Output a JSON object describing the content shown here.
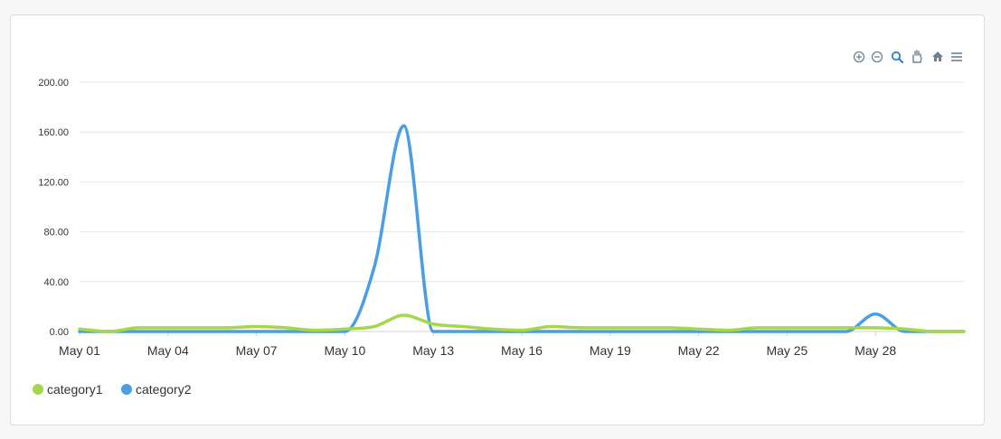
{
  "toolbar": {
    "icons": [
      "zoom-in-icon",
      "zoom-out-icon",
      "selection-zoom-icon",
      "pan-hand-icon",
      "reset-home-icon",
      "menu-icon"
    ],
    "color": "#6e8192"
  },
  "chart_data": {
    "type": "line",
    "title": "",
    "xlabel": "",
    "ylabel": "",
    "ylim": [
      0,
      200
    ],
    "yticks": [
      "0.00",
      "40.00",
      "80.00",
      "120.00",
      "160.00",
      "200.00"
    ],
    "xtick_labels": [
      "May 01",
      "May 04",
      "May 07",
      "May 10",
      "May 13",
      "May 16",
      "May 19",
      "May 22",
      "May 25",
      "May 28"
    ],
    "x": [
      1,
      2,
      3,
      4,
      5,
      6,
      7,
      8,
      9,
      10,
      11,
      12,
      13,
      14,
      15,
      16,
      17,
      18,
      19,
      20,
      21,
      22,
      23,
      24,
      25,
      26,
      27,
      28,
      29,
      30,
      31
    ],
    "grid": true,
    "legend_position": "bottom-left",
    "curve": "smooth",
    "series": [
      {
        "name": "category1",
        "color": "#a5d64c",
        "values": [
          2,
          0,
          3,
          3,
          3,
          3,
          4,
          3,
          1,
          2,
          4,
          13,
          6,
          4,
          2,
          1,
          4,
          3,
          3,
          3,
          3,
          2,
          1,
          3,
          3,
          3,
          3,
          3,
          2,
          0,
          0
        ]
      },
      {
        "name": "category2",
        "color": "#4a9fe4",
        "values": [
          0,
          0,
          0,
          0,
          0,
          0,
          0,
          0,
          0,
          0,
          52,
          165,
          0,
          0,
          0,
          0,
          0,
          0,
          0,
          0,
          0,
          0,
          0,
          0,
          0,
          0,
          0,
          14,
          0,
          0,
          0
        ]
      }
    ]
  }
}
